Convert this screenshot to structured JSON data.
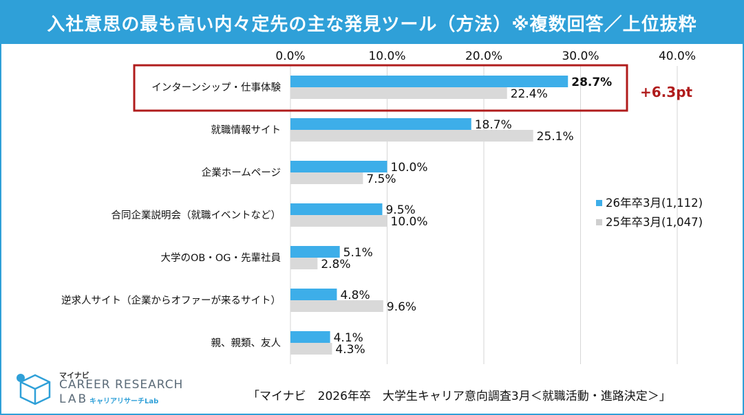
{
  "chart_data": {
    "type": "bar",
    "orientation": "horizontal",
    "title": "入社意思の最も高い内々定先の主な発見ツール（方法）※複数回答／上位抜粋",
    "categories": [
      "インターンシップ・仕事体験",
      "就職情報サイト",
      "企業ホームページ",
      "合同企業説明会（就職イベントなど）",
      "大学のOB・OG・先輩社員",
      "逆求人サイト（企業からオファーが来るサイト）",
      "親、親類、友人"
    ],
    "series": [
      {
        "name": "26年卒3月(1,112)",
        "color": "#3daee9",
        "values": [
          28.7,
          18.7,
          10.0,
          9.5,
          5.1,
          4.8,
          4.1
        ],
        "labels": [
          "28.7%",
          "18.7%",
          "10.0%",
          "9.5%",
          "5.1%",
          "4.8%",
          "4.1%"
        ]
      },
      {
        "name": "25年卒3月(1,047)",
        "color": "#d9d9d9",
        "values": [
          22.4,
          25.1,
          7.5,
          10.0,
          2.8,
          9.6,
          4.3
        ],
        "labels": [
          "22.4%",
          "25.1%",
          "7.5%",
          "10.0%",
          "2.8%",
          "9.6%",
          "4.3%"
        ]
      }
    ],
    "xlim": [
      0,
      40
    ],
    "xticks": [
      "0.0%",
      "10.0%",
      "20.0%",
      "30.0%",
      "40.0%"
    ],
    "grid": true,
    "legend_position": "right",
    "highlight": {
      "category_index": 0,
      "annotation": "+6.3pt",
      "color": "#b01c1c"
    }
  },
  "footer": {
    "source": "「マイナビ　2026年卒　大学生キャリア意向調査3月＜就職活動・進路決定＞」"
  },
  "logo": {
    "top": "マイナビ",
    "main": "CAREER RESEARCH",
    "lab": "LAB",
    "sub": "キャリアリサーチLab"
  }
}
